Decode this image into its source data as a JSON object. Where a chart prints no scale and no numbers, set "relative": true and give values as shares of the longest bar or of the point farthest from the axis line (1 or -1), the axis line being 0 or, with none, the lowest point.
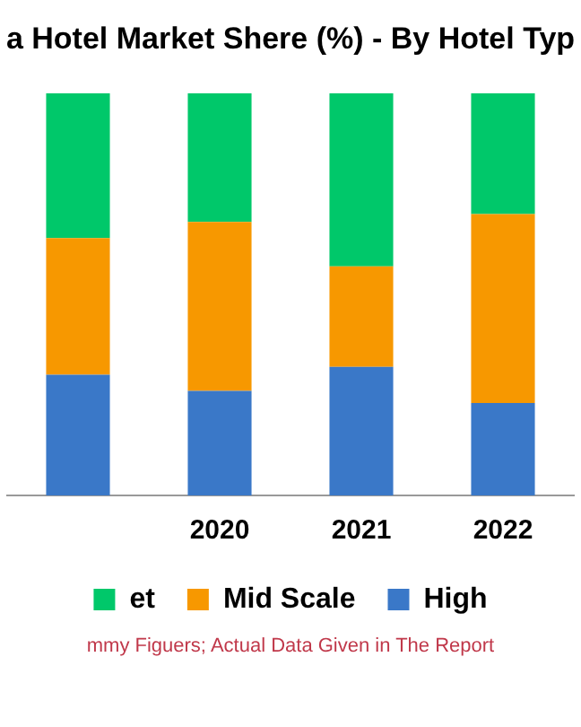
{
  "chart_data": {
    "type": "bar",
    "title": "a Hotel Market Shere (%) - By Hotel Typ",
    "categories": [
      null,
      "2020",
      "2021",
      "2022"
    ],
    "stacked": true,
    "relative": true,
    "legend": "bottom",
    "grid": false,
    "series": [
      {
        "name": "High",
        "color": "#3a78c8",
        "values": [
          0.3,
          0.26,
          0.32,
          0.23
        ]
      },
      {
        "name": "Mid Scale",
        "color": "#f79800",
        "values": [
          0.34,
          0.42,
          0.25,
          0.47
        ]
      },
      {
        "name": "et",
        "color": "#00c86a",
        "values": [
          0.36,
          0.32,
          0.43,
          0.3
        ]
      }
    ],
    "annotations": [
      "mmy Figuers; Actual Data Given in The Report"
    ]
  }
}
